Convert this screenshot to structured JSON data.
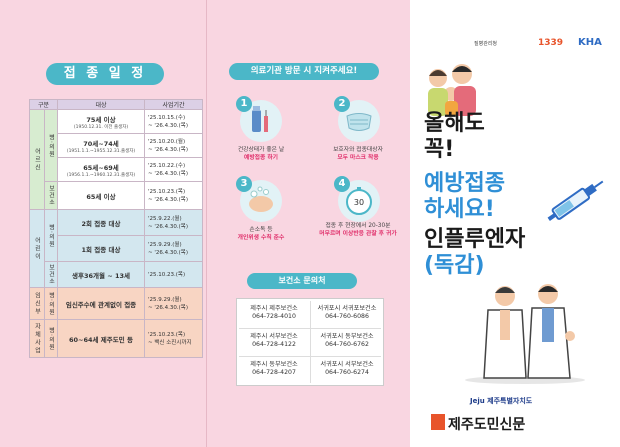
{
  "schedule": {
    "title": "접 종 일 정",
    "headers": [
      "구분",
      "대상",
      "사업기간"
    ],
    "groups": {
      "elderly": "어르신",
      "child": "어린이",
      "pregnant": "임신부",
      "support": "자체사업"
    },
    "sub": {
      "hospital": "병·의원",
      "center": "보건소"
    },
    "rows": {
      "e75_t": "75세 이상",
      "e75_s": "(1950.12.31. 이전 출생자)",
      "e75_d1": "'25.10.15.(수)",
      "e75_d2": "~ '26.4.30.(목)",
      "e70_t": "70세~74세",
      "e70_s": "(1951.1.1.~1955.12.31.출생자)",
      "e70_d1": "'25.10.20.(월)",
      "e70_d2": "~ '26.4.30.(목)",
      "e65_t": "65세~69세",
      "e65_s": "(1956.1.1.~1960.12.31.출생자)",
      "e65_d1": "'25.10.22.(수)",
      "e65_d2": "~ '26.4.30.(목)",
      "ec_t": "65세 이상",
      "ec_d1": "'25.10.23.(목)",
      "ec_d2": "~ '26.4.30.(목)",
      "c2_t": "2회 접종 대상",
      "c2_d1": "'25.9.22.(월)",
      "c2_d2": "~ '26.4.30.(목)",
      "c1_t": "1회 접종 대상",
      "c1_d1": "'25.9.29.(월)",
      "c1_d2": "~ '26.4.30.(목)",
      "cc_t": "생후36개월 ~ 13세",
      "cc_d1": "'25.10.23.(목)",
      "p_t": "임신주수에 관계없이 접종",
      "p_d1": "'25.9.29.(월)",
      "p_d2": "~ '26.4.30.(목)",
      "s_t": "60~64세 제주도민 등",
      "s_d1": "'25.10.23.(목)",
      "s_d2": "~ 백신 소진시까지"
    }
  },
  "visit": {
    "title": "의료기관 방문 시 지켜주세요!",
    "steps": [
      {
        "n": "1",
        "line1": "건강상태가 좋은 날",
        "line2": "예방접종 하기"
      },
      {
        "n": "2",
        "line1": "보호자와 접종대상자",
        "line2": "모두 마스크 착용"
      },
      {
        "n": "3",
        "line1": "손소독 등",
        "line2": "개인위생 수칙 준수"
      },
      {
        "n": "4",
        "line1": "접종 후 현장에서 20-30분",
        "line2": "머무르며 이상반응 관찰 후 귀가"
      }
    ],
    "timer": "30"
  },
  "clinics": {
    "title": "보건소 문의처",
    "items": [
      {
        "name": "제주시 제주보건소",
        "phone": "064-728-4010"
      },
      {
        "name": "서귀포시 서귀포보건소",
        "phone": "064-760-6086"
      },
      {
        "name": "제주시 서부보건소",
        "phone": "064-728-4122"
      },
      {
        "name": "서귀포시 동부보건소",
        "phone": "064-760-6762"
      },
      {
        "name": "제주시 동부보건소",
        "phone": "064-728-4207"
      },
      {
        "name": "서귀포시 서부보건소",
        "phone": "064-760-6274"
      }
    ]
  },
  "cover": {
    "logos": [
      "질병관리청",
      "1339",
      "KHA"
    ],
    "line1": "올해도",
    "line2": "꼭!",
    "line3": "예방접종",
    "line4": "하세요!",
    "line5": "인플루엔자",
    "line6": "(독감)",
    "issuer": "Jeju 제주특별자치도",
    "newspaper": "제주도민신문"
  },
  "colors": {
    "accent": "#4bb7c8",
    "pink": "#f9d6e1",
    "blue": "#2f8fd6",
    "red": "#e0306b"
  }
}
